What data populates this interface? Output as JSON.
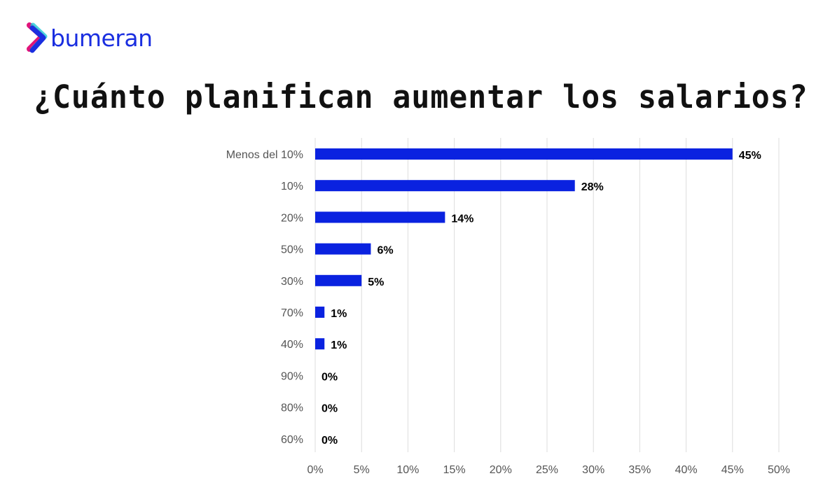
{
  "logo": {
    "text": "bumeran",
    "colors": [
      "#e0147a",
      "#1ec8d8",
      "#1a2ee0"
    ]
  },
  "chart_data": {
    "type": "bar",
    "orientation": "horizontal",
    "title": "¿Cuánto planifican aumentar los salarios?",
    "categories": [
      "Menos del 10%",
      "10%",
      "20%",
      "50%",
      "30%",
      "70%",
      "40%",
      "90%",
      "80%",
      "60%"
    ],
    "values": [
      45,
      28,
      14,
      6,
      5,
      1,
      1,
      0,
      0,
      0
    ],
    "data_labels": [
      "45%",
      "28%",
      "14%",
      "6%",
      "5%",
      "1%",
      "1%",
      "0%",
      "0%",
      "0%"
    ],
    "xlim": [
      0,
      50
    ],
    "x_ticks": [
      "0%",
      "5%",
      "10%",
      "15%",
      "20%",
      "25%",
      "30%",
      "35%",
      "40%",
      "45%",
      "50%"
    ],
    "xlabel": "",
    "ylabel": "",
    "grid": true,
    "bar_color": "#0a22e0"
  }
}
